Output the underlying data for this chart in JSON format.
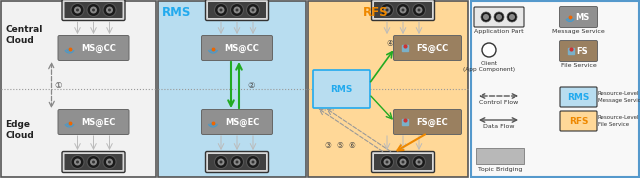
{
  "bg_color": "#ffffff",
  "panel1_bg": "#f0f0f0",
  "panel1_border": "#555555",
  "blue_rms_bg": "#b8ddf0",
  "blue_rms_label": "#22aaee",
  "orange_rfs_bg": "#ffd898",
  "orange_rfs_label": "#ee8800",
  "legend_border": "#5599cc",
  "legend_bg": "#f8f8f8",
  "server_dark": "#404040",
  "server_body": "#c8c8c8",
  "server_stripe": "#e8e8e8",
  "ms_box": "#909090",
  "fs_box": "#9a8060",
  "gray_arrow": "#aaaaaa",
  "green_arrow": "#22aa22",
  "orange_arrow": "#ee8800",
  "dashed_color": "#999999",
  "dotted_color": "#999999",
  "text_dark": "#222222",
  "circled_1": "①",
  "circled_2": "②",
  "circled_3": "③",
  "circled_4": "④",
  "circled_5": "⑤",
  "circled_6": "⑥"
}
